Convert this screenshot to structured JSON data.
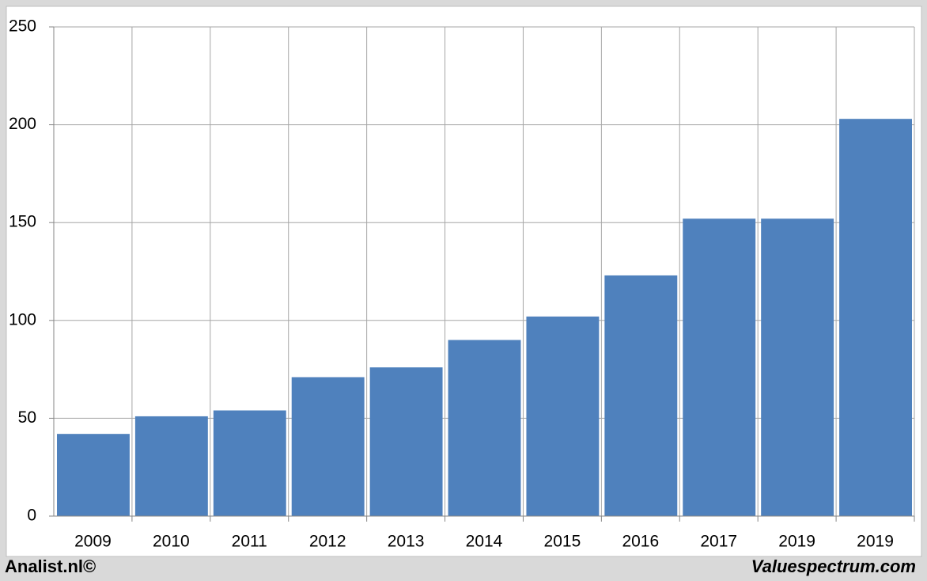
{
  "chart_data": {
    "type": "bar",
    "categories": [
      "2009",
      "2010",
      "2011",
      "2012",
      "2013",
      "2014",
      "2015",
      "2016",
      "2017",
      "2019",
      "2019"
    ],
    "values": [
      42,
      51,
      54,
      71,
      76,
      90,
      102,
      123,
      152,
      152,
      203
    ],
    "color": "#4f81bd",
    "ylim": [
      0,
      250
    ],
    "yticks": [
      0,
      50,
      100,
      150,
      200,
      250
    ],
    "grid": true
  },
  "footer": {
    "left": "Analist.nl©",
    "right": "Valuespectrum.com"
  }
}
